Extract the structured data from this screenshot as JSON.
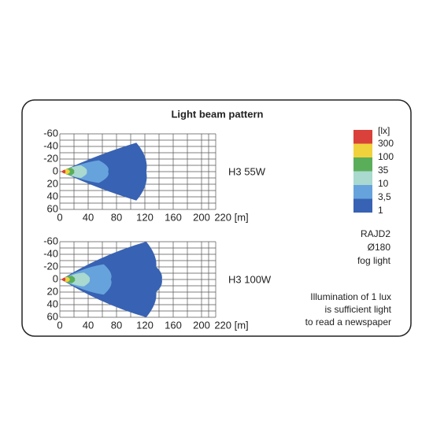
{
  "title": "Light beam pattern",
  "plots": [
    {
      "label": "H3 55W",
      "xticks": [
        0,
        40,
        80,
        120,
        160,
        200,
        {
          "value": 220,
          "label": "220 [m]"
        }
      ],
      "yticks": [
        -60,
        -40,
        -20,
        0,
        20,
        40,
        60
      ]
    },
    {
      "label": "H3 100W",
      "xticks": [
        0,
        40,
        80,
        120,
        160,
        200,
        {
          "value": 220,
          "label": "220 [m]"
        }
      ],
      "yticks": [
        -60,
        -40,
        -20,
        0,
        20,
        40,
        60
      ]
    }
  ],
  "legend": {
    "unit": "[lx]",
    "levels": [
      "300",
      "100",
      "35",
      "10",
      "3,5",
      "1"
    ],
    "colors": [
      "#d9413a",
      "#f0d23c",
      "#5aae5a",
      "#a9d9cf",
      "#66a3dc",
      "#3862b3"
    ]
  },
  "product": [
    "RAJD2",
    "Ø180",
    "fog light"
  ],
  "note": [
    "Illumination of 1 lux",
    "is sufficient light",
    "to read a newspaper"
  ]
}
